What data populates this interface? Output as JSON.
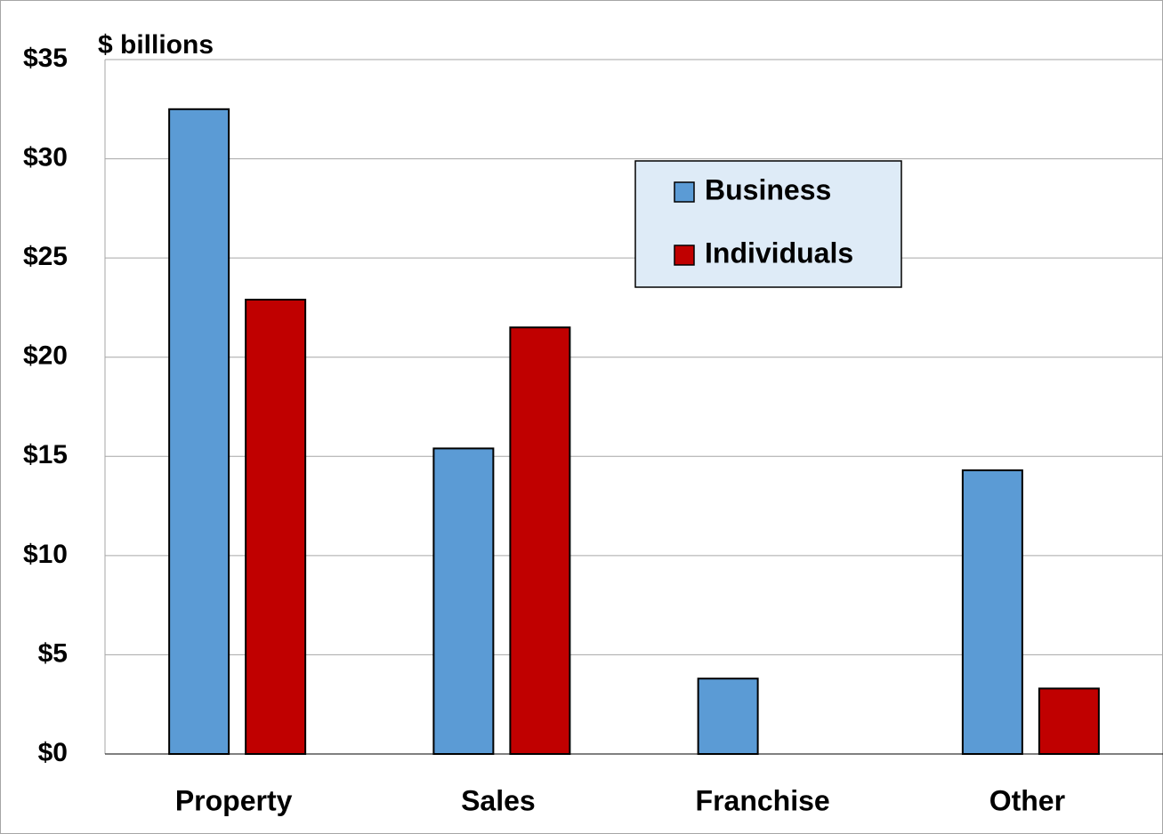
{
  "chart_data": {
    "type": "bar",
    "y_label": "$ billions",
    "categories": [
      "Property",
      "Sales",
      "Franchise",
      "Other"
    ],
    "series": [
      {
        "name": "Business",
        "color": "#5b9bd5",
        "values": [
          32.5,
          15.4,
          3.8,
          14.3
        ]
      },
      {
        "name": "Individuals",
        "color": "#c00000",
        "values": [
          22.9,
          21.5,
          null,
          3.3
        ]
      }
    ],
    "ylim": [
      0,
      35
    ],
    "yticks": [
      {
        "value": 0,
        "label": "$0"
      },
      {
        "value": 5,
        "label": "$5"
      },
      {
        "value": 10,
        "label": "$10"
      },
      {
        "value": 15,
        "label": "$15"
      },
      {
        "value": 20,
        "label": "$20"
      },
      {
        "value": 25,
        "label": "$25"
      },
      {
        "value": 30,
        "label": "$30"
      },
      {
        "value": 35,
        "label": "$35"
      }
    ],
    "grid": true
  }
}
